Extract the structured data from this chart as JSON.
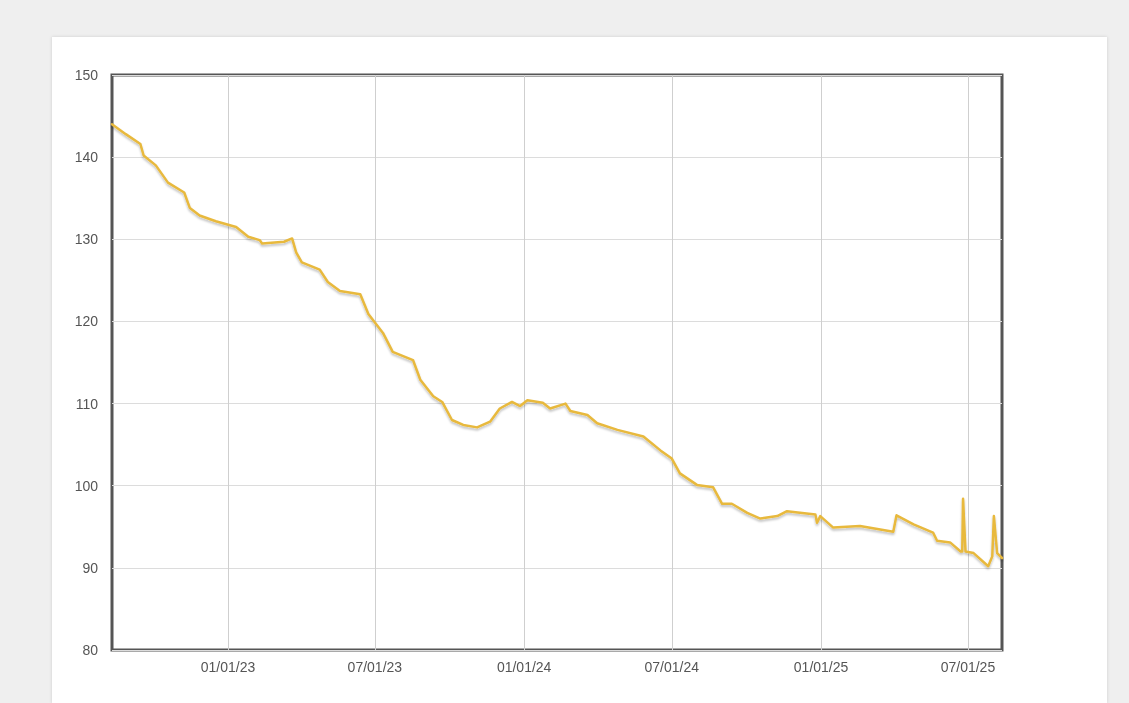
{
  "chart_data": {
    "type": "line",
    "xlim": [
      "2022-08-11",
      "2025-08-12"
    ],
    "ylim": [
      80,
      150
    ],
    "xticks": [
      {
        "value": "2023-01-01",
        "label": "01/01/23"
      },
      {
        "value": "2023-07-01",
        "label": "07/01/23"
      },
      {
        "value": "2024-01-01",
        "label": "01/01/24"
      },
      {
        "value": "2024-07-01",
        "label": "07/01/24"
      },
      {
        "value": "2025-01-01",
        "label": "01/01/25"
      },
      {
        "value": "2025-07-01",
        "label": "07/01/25"
      }
    ],
    "yticks": [
      80,
      90,
      100,
      110,
      120,
      130,
      140,
      150
    ],
    "grid": true,
    "marker": "none",
    "line_style": "solid",
    "series": [
      {
        "color": "#e8b93e",
        "x": [
          "2022-08-11",
          "2022-08-28",
          "2022-09-15",
          "2022-09-19",
          "2022-10-04",
          "2022-10-19",
          "2022-11-08",
          "2022-11-15",
          "2022-11-27",
          "2022-12-17",
          "2023-01-11",
          "2023-01-26",
          "2023-02-09",
          "2023-02-12",
          "2023-03-11",
          "2023-03-21",
          "2023-03-26",
          "2023-04-02",
          "2023-04-24",
          "2023-05-04",
          "2023-05-19",
          "2023-06-13",
          "2023-06-23",
          "2023-07-11",
          "2023-07-23",
          "2023-08-17",
          "2023-08-26",
          "2023-09-11",
          "2023-09-22",
          "2023-10-04",
          "2023-10-18",
          "2023-11-04",
          "2023-11-20",
          "2023-12-02",
          "2023-12-17",
          "2023-12-27",
          "2024-01-05",
          "2024-01-24",
          "2024-02-02",
          "2024-02-21",
          "2024-02-27",
          "2024-03-19",
          "2024-03-31",
          "2024-04-25",
          "2024-05-27",
          "2024-06-17",
          "2024-07-01",
          "2024-07-11",
          "2024-08-01",
          "2024-08-21",
          "2024-09-01",
          "2024-09-13",
          "2024-10-02",
          "2024-10-18",
          "2024-11-08",
          "2024-11-20",
          "2024-12-06",
          "2024-12-25",
          "2024-12-27",
          "2024-12-31",
          "2025-01-16",
          "2025-02-18",
          "2025-03-31",
          "2025-04-04",
          "2025-04-25",
          "2025-05-19",
          "2025-05-24",
          "2025-06-09",
          "2025-06-22",
          "2025-06-24",
          "2025-06-25",
          "2025-06-28",
          "2025-07-08",
          "2025-07-26",
          "2025-07-31",
          "2025-08-02",
          "2025-08-06",
          "2025-08-12"
        ],
        "values": [
          144.0,
          142.8,
          141.6,
          140.2,
          139.0,
          136.9,
          135.7,
          133.8,
          132.9,
          132.2,
          131.5,
          130.3,
          129.9,
          129.5,
          129.7,
          130.1,
          128.4,
          127.2,
          126.3,
          124.8,
          123.7,
          123.3,
          120.9,
          118.6,
          116.3,
          115.3,
          112.9,
          110.9,
          110.2,
          108.0,
          107.4,
          107.1,
          107.8,
          109.4,
          110.2,
          109.7,
          110.4,
          110.1,
          109.4,
          110.0,
          109.1,
          108.6,
          107.6,
          106.8,
          106.0,
          104.3,
          103.3,
          101.5,
          100.1,
          99.8,
          97.8,
          97.8,
          96.7,
          96.0,
          96.3,
          96.9,
          96.7,
          96.5,
          95.5,
          96.3,
          94.9,
          95.1,
          94.4,
          96.4,
          95.3,
          94.3,
          93.3,
          93.1,
          92.0,
          92.0,
          98.4,
          92.0,
          91.8,
          90.2,
          91.4,
          96.3,
          91.8,
          91.2
        ]
      }
    ]
  }
}
